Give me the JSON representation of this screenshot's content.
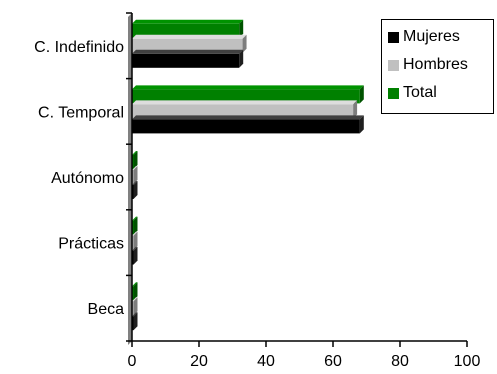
{
  "chart_data": {
    "type": "bar",
    "orientation": "horizontal",
    "three_d": true,
    "categories": [
      "C. Indefinido",
      "C. Temporal",
      "Autónomo",
      "Prácticas",
      "Beca"
    ],
    "series": [
      {
        "name": "Mujeres",
        "color": "#000000",
        "values": [
          32,
          68,
          0,
          0,
          0
        ]
      },
      {
        "name": "Hombres",
        "color": "#c0c0c0",
        "values": [
          33,
          66,
          0,
          0,
          0
        ]
      },
      {
        "name": "Total",
        "color": "#008000",
        "values": [
          32,
          68,
          0,
          0,
          0
        ]
      }
    ],
    "xlim": [
      0,
      100
    ],
    "x_ticks": [
      "0",
      "20",
      "40",
      "60",
      "80",
      "100"
    ],
    "title": "",
    "xlabel": "",
    "ylabel": "",
    "grid": false,
    "legend_position": "top-right"
  }
}
